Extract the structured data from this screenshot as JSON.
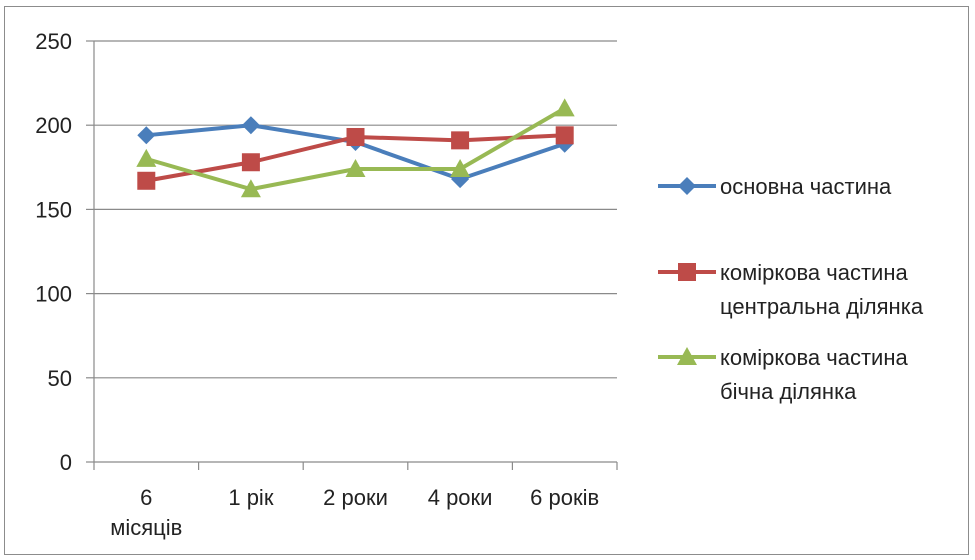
{
  "chart_data": {
    "type": "line",
    "categories": [
      [
        "6",
        "місяців"
      ],
      [
        "1 рік"
      ],
      [
        "2 роки"
      ],
      [
        "4 роки"
      ],
      [
        "6 років"
      ]
    ],
    "series": [
      {
        "name": [
          "основна частина"
        ],
        "values": [
          194,
          200,
          190,
          168,
          189
        ],
        "color": "#4a7ebb",
        "marker": "diamond"
      },
      {
        "name": [
          "коміркова частина",
          "центральна ділянка"
        ],
        "values": [
          167,
          178,
          193,
          191,
          194
        ],
        "color": "#be4b48",
        "marker": "square"
      },
      {
        "name": [
          "коміркова частина",
          "бічна ділянка"
        ],
        "values": [
          180,
          162,
          174,
          174,
          210
        ],
        "color": "#98b954",
        "marker": "triangle"
      }
    ],
    "y_ticks": [
      "0",
      "50",
      "100",
      "150",
      "200",
      "250"
    ],
    "ylim": [
      0,
      250
    ],
    "grid": true,
    "legend_position": "right"
  }
}
